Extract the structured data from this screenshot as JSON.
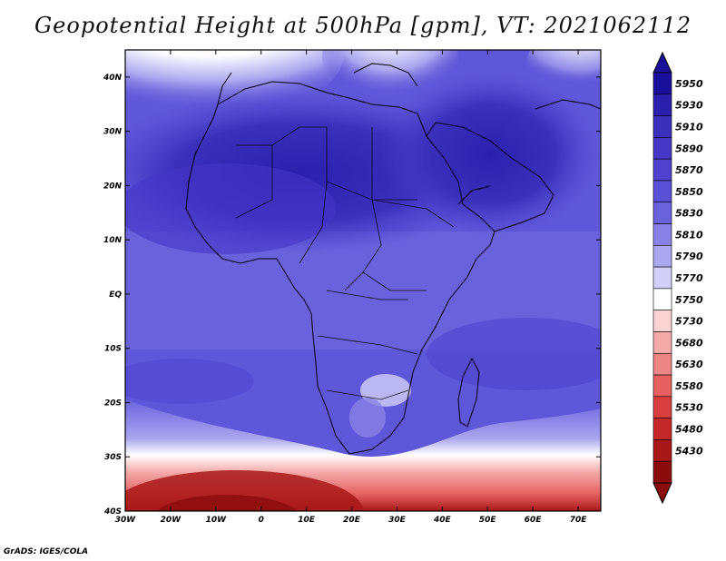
{
  "title": "Geopotential Height at 500hPa [gpm], VT: 2021062112",
  "credit": "GrADS: IGES/COLA",
  "map": {
    "lon_range": [
      -30,
      75
    ],
    "lat_range": [
      -40,
      45
    ],
    "lon_ticks": [
      {
        "lon": -30,
        "label": "30W"
      },
      {
        "lon": -20,
        "label": "20W"
      },
      {
        "lon": -10,
        "label": "10W"
      },
      {
        "lon": 0,
        "label": "0"
      },
      {
        "lon": 10,
        "label": "10E"
      },
      {
        "lon": 20,
        "label": "20E"
      },
      {
        "lon": 30,
        "label": "30E"
      },
      {
        "lon": 40,
        "label": "40E"
      },
      {
        "lon": 50,
        "label": "50E"
      },
      {
        "lon": 60,
        "label": "60E"
      },
      {
        "lon": 70,
        "label": "70E"
      }
    ],
    "lat_ticks": [
      {
        "lat": 40,
        "label": "40N"
      },
      {
        "lat": 30,
        "label": "30N"
      },
      {
        "lat": 20,
        "label": "20N"
      },
      {
        "lat": 10,
        "label": "10N"
      },
      {
        "lat": 0,
        "label": "EQ"
      },
      {
        "lat": -10,
        "label": "10S"
      },
      {
        "lat": -20,
        "label": "20S"
      },
      {
        "lat": -30,
        "label": "30S"
      },
      {
        "lat": -40,
        "label": "40S"
      }
    ]
  },
  "colorbar": {
    "labels": [
      "5950",
      "5930",
      "5910",
      "5890",
      "5870",
      "5850",
      "5830",
      "5810",
      "5790",
      "5770",
      "5750",
      "5730",
      "5680",
      "5630",
      "5580",
      "5530",
      "5480",
      "5430"
    ],
    "colors": [
      "#1a0f9a",
      "#2b20ad",
      "#3a30bb",
      "#4536c6",
      "#4f42cf",
      "#5a50d6",
      "#6a62dd",
      "#8882e6",
      "#aaa6ef",
      "#d2d0f8",
      "#ffffff",
      "#fbd3d3",
      "#f5aaaa",
      "#ee8585",
      "#e66060",
      "#d84040",
      "#c42828",
      "#a81818",
      "#8b0c0c"
    ]
  },
  "regions": {
    "ocean": "#5f57d9",
    "north_africa": "#3a30bb",
    "arabia": "#3128b1",
    "east_africa": "#5248d0",
    "south_band_light": "#aaa6ef",
    "south_band_white": "#ffffff",
    "south_pink": "#f5aaaa",
    "south_red": "#d84040",
    "south_darkred": "#a81818",
    "north_pink": "#f5aaaa"
  }
}
